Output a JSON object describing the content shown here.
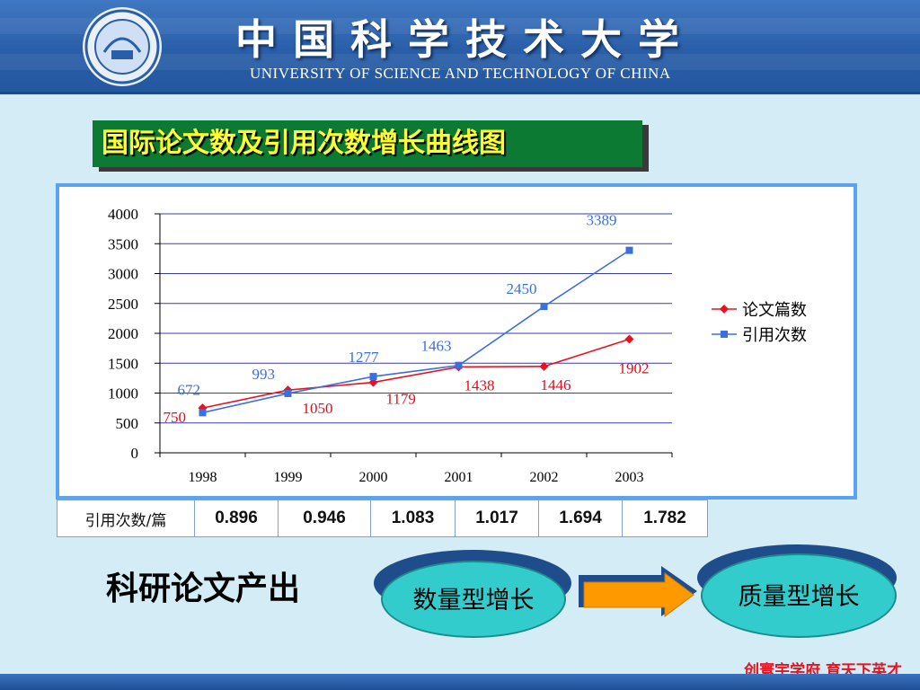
{
  "header": {
    "title_cn": "中国科学技术大学",
    "title_en": "UNIVERSITY OF SCIENCE AND TECHNOLOGY OF CHINA",
    "logo_icon": "university-seal-icon"
  },
  "slide": {
    "title": "国际论文数及引用次数增长曲线图"
  },
  "chart_data": {
    "type": "line",
    "x": [
      "1998",
      "1999",
      "2000",
      "2001",
      "2002",
      "2003"
    ],
    "ylim": [
      0,
      4000
    ],
    "yticks": [
      "4000",
      "3500",
      "3000",
      "2500",
      "2000",
      "1500",
      "1000",
      "500",
      "0"
    ],
    "grid": true,
    "legend_position": "right",
    "series": [
      {
        "name": "论文篇数",
        "values": [
          750,
          1050,
          1179,
          1438,
          1446,
          1902
        ],
        "color": "#e8131f",
        "marker": "diamond"
      },
      {
        "name": "引用次数",
        "values": [
          672,
          993,
          1277,
          1463,
          2450,
          3389
        ],
        "color": "#3a6fe0",
        "marker": "square"
      }
    ],
    "labels": {
      "paper": [
        "750",
        "1050",
        "1179",
        "1438",
        "1446",
        "1902"
      ],
      "citation": [
        "672",
        "993",
        "1277",
        "1463",
        "2450",
        "3389"
      ]
    }
  },
  "table": {
    "label": "引用次数/篇",
    "values": [
      "0.896",
      "0.946",
      "1.083",
      "1.017",
      "1.694",
      "1.782"
    ]
  },
  "bottom": {
    "label": "科研论文产出",
    "oval_left": "数量型增长",
    "oval_right": "质量型增长",
    "arrow_icon": "right-arrow-icon"
  },
  "footer": {
    "motto": "创寰宇学府  育天下英才"
  },
  "colors": {
    "title_box": "#0d7a33",
    "title_text": "#ffff33",
    "oval": "#33cccc",
    "arrow": "#ff9900",
    "motto": "#e8131f"
  }
}
